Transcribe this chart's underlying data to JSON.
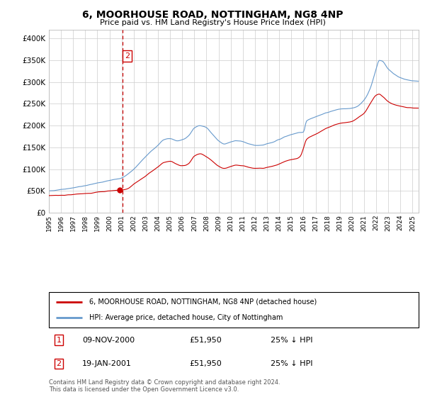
{
  "title": "6, MOORHOUSE ROAD, NOTTINGHAM, NG8 4NP",
  "subtitle": "Price paid vs. HM Land Registry's House Price Index (HPI)",
  "ylim": [
    0,
    420000
  ],
  "yticks": [
    0,
    50000,
    100000,
    150000,
    200000,
    250000,
    300000,
    350000,
    400000
  ],
  "ytick_labels": [
    "£0",
    "£50K",
    "£100K",
    "£150K",
    "£200K",
    "£250K",
    "£300K",
    "£350K",
    "£400K"
  ],
  "xlim_start": 1995.0,
  "xlim_end": 2025.5,
  "price_paid_color": "#cc0000",
  "hpi_color": "#6699cc",
  "dashed_line_color": "#cc0000",
  "marker_box_color": "#cc0000",
  "background_color": "#ffffff",
  "grid_color": "#cccccc",
  "transaction1": {
    "label": "1",
    "date": "09-NOV-2000",
    "year": 2000.86,
    "price": 51950,
    "pct": "25% ↓ HPI"
  },
  "transaction2": {
    "label": "2",
    "date": "19-JAN-2001",
    "year": 2001.05,
    "price": 51950,
    "pct": "25% ↓ HPI"
  },
  "legend_line1": "6, MOORHOUSE ROAD, NOTTINGHAM, NG8 4NP (detached house)",
  "legend_line2": "HPI: Average price, detached house, City of Nottingham",
  "footer": "Contains HM Land Registry data © Crown copyright and database right 2024.\nThis data is licensed under the Open Government Licence v3.0."
}
